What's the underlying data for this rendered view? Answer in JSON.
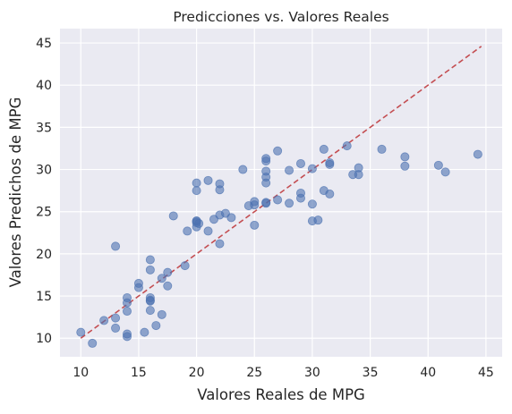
{
  "chart_data": {
    "type": "scatter",
    "title": "Predicciones vs. Valores Reales",
    "xlabel": "Valores Reales de MPG",
    "ylabel": "Valores Predichos de MPG",
    "xlim": [
      8.2,
      46.4
    ],
    "ylim": [
      7.8,
      46.7
    ],
    "xticks": [
      10,
      15,
      20,
      25,
      30,
      35,
      40,
      45
    ],
    "yticks": [
      10,
      15,
      20,
      25,
      30,
      35,
      40,
      45
    ],
    "grid": true,
    "colors": {
      "background": "#eaeaf2",
      "grid": "#ffffff",
      "points": "#4c72b0",
      "reference_line": "#c44e52"
    },
    "reference_line": {
      "x": [
        10,
        44.6
      ],
      "y": [
        10,
        44.6
      ]
    },
    "series": [
      {
        "x": [
          10,
          11,
          12,
          13,
          13,
          13,
          14,
          14,
          14,
          14,
          14,
          15,
          15,
          15.5,
          16,
          16,
          16,
          16,
          16,
          16,
          16.5,
          17,
          17,
          17.5,
          17.5,
          18,
          19,
          19.2,
          20,
          20,
          20,
          20,
          20,
          20,
          20.2,
          21,
          21,
          21.5,
          22,
          22,
          22,
          22,
          22.5,
          23,
          24,
          24.5,
          25,
          25,
          25,
          26,
          26,
          26,
          26,
          26,
          26,
          26,
          27,
          27,
          28,
          28,
          29,
          29,
          29,
          30,
          30,
          30,
          30.5,
          31,
          31,
          31.5,
          31.5,
          31.5,
          33,
          33.5,
          34,
          34,
          36,
          38,
          38,
          40.9,
          41.5,
          44.3
        ],
        "y": [
          10.7,
          9.4,
          12.1,
          11.2,
          12.4,
          20.9,
          10.5,
          10.2,
          13.2,
          14.2,
          14.8,
          16,
          16.5,
          10.7,
          14.4,
          13.3,
          14.8,
          18.1,
          19.3,
          14.5,
          11.5,
          12.8,
          17.1,
          16.2,
          17.8,
          24.5,
          18.6,
          22.7,
          23.2,
          23.7,
          23.9,
          27.5,
          28.4,
          23.9,
          23.6,
          28.7,
          22.7,
          24.1,
          24.6,
          28.3,
          27.6,
          21.2,
          24.8,
          24.3,
          30,
          25.7,
          26.2,
          23.4,
          25.8,
          28.4,
          29.1,
          29.8,
          31.3,
          31,
          26,
          26.1,
          26.4,
          32.2,
          26,
          29.9,
          30.7,
          27.2,
          26.6,
          30.1,
          23.9,
          25.9,
          24,
          32.4,
          27.5,
          30.6,
          30.8,
          27.1,
          32.8,
          29.4,
          30.2,
          29.4,
          32.4,
          31.5,
          30.4,
          30.5,
          29.7,
          31.8
        ]
      }
    ]
  }
}
